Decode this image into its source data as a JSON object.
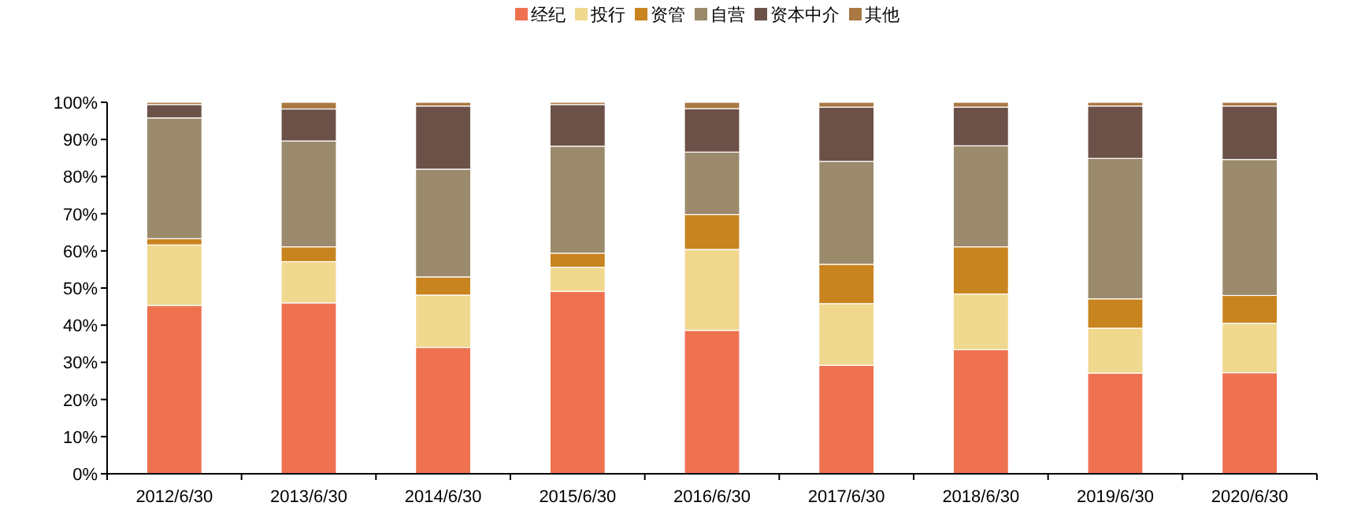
{
  "chart_data": {
    "type": "bar",
    "stacked": true,
    "legend": "top",
    "grid": false,
    "categories": [
      "2012/6/30",
      "2013/6/30",
      "2014/6/30",
      "2015/6/30",
      "2016/6/30",
      "2017/6/30",
      "2018/6/30",
      "2019/6/30",
      "2020/6/30"
    ],
    "series": [
      {
        "name": "经纪",
        "color": "#ee7150",
        "values": [
          45.3,
          46.0,
          34.0,
          49.1,
          38.6,
          29.2,
          33.4,
          27.1,
          27.2
        ]
      },
      {
        "name": "投行",
        "color": "#f0d88e",
        "values": [
          16.3,
          11.1,
          14.1,
          6.5,
          21.8,
          16.6,
          15.0,
          12.1,
          13.3
        ]
      },
      {
        "name": "资管",
        "color": "#c8841f",
        "values": [
          1.7,
          4.0,
          4.9,
          3.8,
          9.4,
          10.6,
          12.7,
          7.9,
          7.5
        ]
      },
      {
        "name": "自营",
        "color": "#9b8a6c",
        "values": [
          32.5,
          28.5,
          29.0,
          28.8,
          16.8,
          27.7,
          27.2,
          37.8,
          36.6
        ]
      },
      {
        "name": "资本中介",
        "color": "#6b5148",
        "values": [
          3.6,
          8.6,
          17.0,
          11.2,
          11.7,
          14.6,
          10.4,
          14.1,
          14.4
        ]
      },
      {
        "name": "其他",
        "color": "#a97843",
        "values": [
          0.6,
          1.8,
          1.0,
          0.6,
          1.7,
          1.3,
          1.3,
          1.0,
          1.0
        ]
      }
    ],
    "ylim": [
      0,
      100
    ],
    "yticks": [
      {
        "value": 0,
        "label": "0%"
      },
      {
        "value": 10,
        "label": "10%"
      },
      {
        "value": 20,
        "label": "20%"
      },
      {
        "value": 30,
        "label": "30%"
      },
      {
        "value": 40,
        "label": "40%"
      },
      {
        "value": 50,
        "label": "50%"
      },
      {
        "value": 60,
        "label": "60%"
      },
      {
        "value": 70,
        "label": "70%"
      },
      {
        "value": 80,
        "label": "80%"
      },
      {
        "value": 90,
        "label": "90%"
      },
      {
        "value": 100,
        "label": "100%"
      }
    ]
  }
}
